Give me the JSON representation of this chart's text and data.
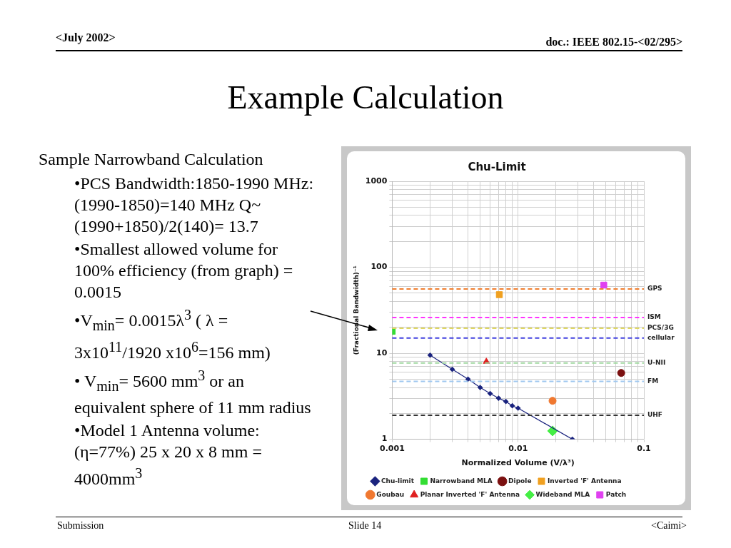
{
  "chart_data": {
    "type": "scatter",
    "title": "Chu-Limit",
    "xlabel": "Normalized Volume (V/λ³)",
    "ylabel": "(Fractional Bandwidth)⁻¹",
    "log": "xy",
    "grid": true,
    "legend": "bottom",
    "xlim": [
      0.001,
      0.1
    ],
    "ylim": [
      1,
      1000
    ],
    "xticks": [
      0.001,
      {
        "value": 0.002,
        "label": null
      },
      {
        "value": 0.003,
        "label": null
      },
      {
        "value": 0.004,
        "label": null
      },
      {
        "value": 0.005,
        "label": null
      },
      {
        "value": 0.006,
        "label": null
      },
      {
        "value": 0.007,
        "label": null
      },
      {
        "value": 0.008,
        "label": null
      },
      {
        "value": 0.009,
        "label": null
      },
      0.01,
      {
        "value": 0.02,
        "label": null
      },
      {
        "value": 0.03,
        "label": null
      },
      {
        "value": 0.04,
        "label": null
      },
      {
        "value": 0.05,
        "label": null
      },
      {
        "value": 0.06,
        "label": null
      },
      {
        "value": 0.07,
        "label": null
      },
      {
        "value": 0.08,
        "label": null
      },
      {
        "value": 0.09,
        "label": null
      },
      0.1
    ],
    "yticks": [
      1,
      {
        "value": 2,
        "label": null
      },
      {
        "value": 3,
        "label": null
      },
      {
        "value": 4,
        "label": null
      },
      {
        "value": 5,
        "label": null
      },
      {
        "value": 6,
        "label": null
      },
      {
        "value": 7,
        "label": null
      },
      {
        "value": 8,
        "label": null
      },
      {
        "value": 9,
        "label": null
      },
      10,
      {
        "value": 20,
        "label": null
      },
      {
        "value": 30,
        "label": null
      },
      {
        "value": 40,
        "label": null
      },
      {
        "value": 50,
        "label": null
      },
      {
        "value": 60,
        "label": null
      },
      {
        "value": 70,
        "label": null
      },
      {
        "value": 80,
        "label": null
      },
      {
        "value": 90,
        "label": null
      },
      100,
      {
        "value": 200,
        "label": null
      },
      {
        "value": 300,
        "label": null
      },
      {
        "value": 400,
        "label": null
      },
      {
        "value": 500,
        "label": null
      },
      {
        "value": 600,
        "label": null
      },
      {
        "value": 700,
        "label": null
      },
      {
        "value": 800,
        "label": null
      },
      {
        "value": 900,
        "label": null
      },
      1000
    ],
    "series": [
      {
        "name": "Chu-limit",
        "type": "line",
        "marker": "diamond",
        "color": "#1a237e",
        "x": [
          0.002,
          0.003,
          0.004,
          0.005,
          0.006,
          0.007,
          0.008,
          0.009,
          0.01,
          0.027
        ],
        "values": [
          9.5,
          6.5,
          5.0,
          4.0,
          3.4,
          3.0,
          2.75,
          2.45,
          2.3,
          1
        ]
      },
      {
        "name": "Narrowband MLA",
        "type": "scatter",
        "marker": "square",
        "color": "#33dd33",
        "x": [
          0.001
        ],
        "values": [
          18
        ]
      },
      {
        "name": "Dipole",
        "type": "scatter",
        "marker": "circle",
        "color": "#7b1010",
        "x": [
          0.066
        ],
        "values": [
          5.9
        ]
      },
      {
        "name": "Inverted 'F' Antenna",
        "type": "scatter",
        "marker": "square",
        "color": "#f0a020",
        "x": [
          0.0071
        ],
        "values": [
          48
        ]
      },
      {
        "name": "Goubau",
        "type": "scatter",
        "marker": "circle",
        "color": "#f07830",
        "x": [
          0.0188
        ],
        "values": [
          2.8
        ]
      },
      {
        "name": "Planar Inverted 'F' Antenna",
        "type": "scatter",
        "marker": "triangle",
        "color": "#e02020",
        "x": [
          0.0056
        ],
        "values": [
          8.0
        ]
      },
      {
        "name": "Wideband MLA",
        "type": "scatter",
        "marker": "diamond",
        "color": "#44ee44",
        "x": [
          0.0188
        ],
        "values": [
          1.25
        ]
      },
      {
        "name": "Patch",
        "type": "scatter",
        "marker": "square",
        "color": "#e040f0",
        "x": [
          0.048
        ],
        "values": [
          62
        ]
      }
    ],
    "ref_lines": [
      {
        "axis": "y",
        "value": 56,
        "label": "GPS",
        "color": "#f07f30",
        "line_style": "dashed"
      },
      {
        "axis": "y",
        "value": 26,
        "label": "ISM",
        "color": "#ff33ff",
        "line_style": "dashed"
      },
      {
        "axis": "y",
        "value": 19.5,
        "label": "PCS/3G",
        "color": "#e0d860",
        "line_style": "dashed"
      },
      {
        "axis": "y",
        "value": 15,
        "label": "cellular",
        "color": "#4040e0",
        "line_style": "dashed"
      },
      {
        "axis": "y",
        "value": 7.7,
        "label": "U-NII",
        "color": "#a0d8a0",
        "line_style": "dashed"
      },
      {
        "axis": "y",
        "value": 4.7,
        "label": "FM",
        "color": "#a0c8f0",
        "line_style": "dashed"
      },
      {
        "axis": "y",
        "value": 1.9,
        "label": "UHF",
        "color": "#333333",
        "line_style": "dashed"
      }
    ],
    "annotations": [
      "<July 2002>",
      "doc.: IEEE 802.15-<02/295>",
      "Example Calculation",
      "Sample Narrowband Calculation",
      "•PCS Bandwidth:1850-1990 MHz: (1990-1850)=140 MHz Q~(1990+1850)/2(140)= 13.7",
      "•Smallest allowed volume for 100% efficiency (from graph) = 0.0015",
      "•V$_{min}$= 0.0015λ$^{3}$ ( λ = 3x10$^{11}$/1920 x10$^{6}$=156 mm)",
      "• V$_{min}$= 5600 mm$^{3}$ or an equivalent sphere of 11 mm radius",
      "•Model 1 Antenna volume:(η=77%) 25 x 20 x 8 mm = 4000mm$^{3}$",
      "Submission",
      "Slide 14",
      "<Caimi>"
    ]
  }
}
